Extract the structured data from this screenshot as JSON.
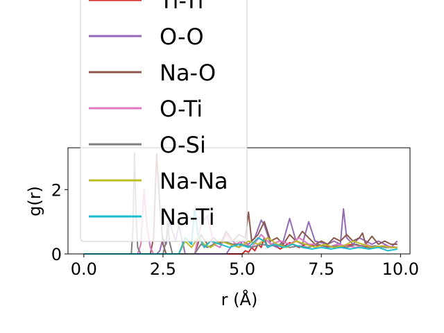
{
  "chart_data": {
    "type": "line",
    "xlabel": "r (Å)",
    "ylabel": "g(r)",
    "xlim": [
      -0.5,
      10.3
    ],
    "ylim": [
      0,
      3.3
    ],
    "xticks": [
      "0.0",
      "2.5",
      "5.0",
      "7.5",
      "10.0"
    ],
    "yticks": [
      "0",
      "2"
    ],
    "legend_position": "upper-left",
    "series": [
      {
        "name": "Ti-Ti",
        "color": "#d62728",
        "x": [
          0,
          5.0,
          5.1,
          5.2,
          5.3,
          5.4,
          5.5,
          5.6,
          5.7,
          5.8,
          6.0,
          6.2,
          6.5,
          6.8,
          7.0,
          7.5,
          8.0,
          8.5,
          9.0,
          9.5,
          9.9
        ],
        "y": [
          0,
          0,
          0.1,
          0.05,
          0.2,
          0.1,
          0.3,
          0.2,
          0.5,
          0.2,
          0.3,
          0.15,
          0.35,
          0.2,
          0.3,
          0.25,
          0.2,
          0.3,
          0.2,
          0.25,
          0.2
        ]
      },
      {
        "name": "O-O",
        "color": "#9467bd",
        "x": [
          0,
          2.3,
          2.4,
          2.5,
          2.6,
          2.7,
          2.9,
          3.0,
          3.2,
          4.5,
          4.7,
          4.9,
          5.0,
          5.2,
          5.4,
          5.6,
          5.7,
          5.9,
          6.1,
          6.3,
          6.5,
          6.7,
          6.9,
          7.1,
          7.3,
          7.5,
          7.7,
          7.9,
          8.1,
          8.2,
          8.3,
          8.5,
          8.7,
          8.9,
          9.1,
          9.3,
          9.5,
          9.7,
          9.9
        ],
        "y": [
          0,
          0,
          0.1,
          0.5,
          0.3,
          1.0,
          0.4,
          0.9,
          0,
          0,
          0.3,
          0.2,
          0.4,
          0.3,
          0.5,
          1.05,
          0.9,
          0.3,
          0.2,
          0.4,
          1.1,
          0.4,
          0.3,
          1.0,
          0.4,
          0.35,
          0.3,
          0.4,
          0.3,
          1.4,
          0.5,
          0.3,
          0.5,
          0.4,
          0.3,
          0.4,
          0.3,
          0.2,
          0.4
        ]
      },
      {
        "name": "Na-O",
        "color": "#8c564b",
        "x": [
          0,
          2.1,
          2.2,
          2.3,
          2.4,
          2.5,
          2.6,
          3.5,
          3.7,
          3.9,
          4.1,
          4.3,
          4.5,
          4.7,
          4.9,
          5.1,
          5.2,
          5.3,
          5.5,
          5.7,
          5.9,
          6.1,
          6.3,
          6.5,
          6.7,
          6.9,
          7.1,
          7.3,
          7.5,
          7.7,
          7.9,
          8.1,
          8.3,
          8.5,
          8.7,
          8.8,
          8.9,
          9.1,
          9.3,
          9.5,
          9.7,
          9.9
        ],
        "y": [
          0,
          0,
          0.5,
          3.1,
          1.5,
          0.3,
          0,
          0,
          0.6,
          0.3,
          0.5,
          0.3,
          0.7,
          0.4,
          0.6,
          0.5,
          1.3,
          0.4,
          0.6,
          1.0,
          0.4,
          0.5,
          0.3,
          0.6,
          0.4,
          0.7,
          0.5,
          0.3,
          0.4,
          0.3,
          0.5,
          0.4,
          0.6,
          0.4,
          0.5,
          0.65,
          0.3,
          0.55,
          0.3,
          0.4,
          0.3,
          0.3
        ]
      },
      {
        "name": "O-Ti",
        "color": "#e377c2",
        "x": [
          0,
          1.7,
          1.8,
          1.9,
          2.0,
          2.1,
          2.2,
          3.5,
          3.7,
          3.9,
          4.1,
          4.3,
          4.5,
          4.8,
          5.0,
          5.3,
          5.6,
          5.9,
          6.2,
          6.5,
          6.8,
          7.1,
          7.4,
          7.7,
          8.0,
          8.3,
          8.6,
          8.9,
          9.2,
          9.5,
          9.9
        ],
        "y": [
          0,
          0,
          0.3,
          2.0,
          0.8,
          0.2,
          0,
          0,
          0.9,
          1.2,
          0.3,
          0.2,
          0.6,
          0.3,
          0.4,
          0.2,
          0.6,
          0.3,
          0.4,
          0.3,
          0.5,
          0.3,
          0.3,
          0.2,
          0.3,
          0.25,
          0.2,
          0.3,
          0.2,
          0.25,
          0.2
        ]
      },
      {
        "name": "O-Si",
        "color": "#7f7f7f",
        "x": [
          0,
          1.5,
          1.55,
          1.6,
          1.65,
          1.7,
          1.8,
          2.5,
          2.6,
          2.65,
          2.7,
          2.8,
          3.5,
          3.7,
          3.9,
          4.1,
          4.4,
          4.7,
          5.0,
          5.3,
          5.6,
          5.9,
          6.2,
          6.5,
          6.8,
          7.1,
          7.4,
          7.7,
          8.0,
          8.3,
          8.6,
          8.9,
          9.2,
          9.5,
          9.9
        ],
        "y": [
          0,
          0,
          0.8,
          3.15,
          1.2,
          0.2,
          0,
          0,
          0.4,
          1.0,
          0.4,
          0,
          0,
          0.3,
          0.2,
          0.3,
          0.4,
          0.3,
          0.3,
          0.2,
          0.3,
          0.25,
          0.3,
          0.2,
          0.25,
          0.2,
          0.3,
          0.2,
          0.25,
          0.2,
          0.3,
          0.2,
          0.25,
          0.2,
          0.2
        ]
      },
      {
        "name": "Na-Na",
        "color": "#bcbd22",
        "x": [
          0,
          3.0,
          3.2,
          3.4,
          3.6,
          3.8,
          4.0,
          4.3,
          4.6,
          4.9,
          5.2,
          5.5,
          5.8,
          6.1,
          6.4,
          6.7,
          7.0,
          7.3,
          7.6,
          7.9,
          8.2,
          8.5,
          8.8,
          9.1,
          9.4,
          9.7,
          9.9
        ],
        "y": [
          0,
          0,
          0.4,
          0.2,
          0.5,
          0.3,
          0.2,
          0.4,
          0.3,
          0.2,
          0.4,
          0.3,
          0.5,
          0.3,
          0.2,
          0.4,
          0.3,
          0.2,
          0.3,
          0.2,
          0.25,
          0.4,
          0.3,
          0.2,
          0.25,
          0.2,
          0.2
        ]
      },
      {
        "name": "Na-Ti",
        "color": "#17becf",
        "x": [
          0,
          3.0,
          3.2,
          3.4,
          3.5,
          3.6,
          3.8,
          4.0,
          4.3,
          4.6,
          4.9,
          5.2,
          5.5,
          5.7,
          5.8,
          6.0,
          6.3,
          6.6,
          6.9,
          7.2,
          7.5,
          7.8,
          8.1,
          8.4,
          8.7,
          9.0,
          9.3,
          9.6,
          9.9
        ],
        "y": [
          0,
          0,
          0.5,
          0.3,
          1.4,
          0.6,
          0.2,
          0.4,
          0.3,
          0.2,
          0.3,
          0.2,
          0.5,
          0.4,
          0.2,
          0.3,
          0.2,
          0.3,
          0.2,
          0.15,
          0.2,
          0.15,
          0.2,
          0.15,
          0.2,
          0.15,
          0.2,
          0.1,
          0.15
        ]
      }
    ]
  }
}
